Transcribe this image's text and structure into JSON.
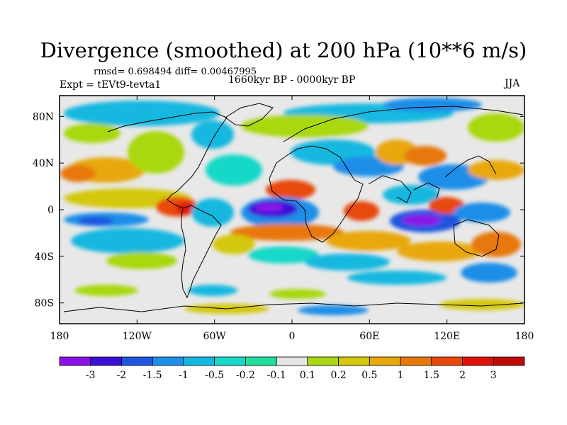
{
  "title": "Divergence (smoothed) at 200 hPa (10**6 m/s)",
  "stats": "rmsd= 0.698494 diff= 0.00467995",
  "experiment": "Expt = tEVt9-tevta1",
  "period": "1660kyr BP - 0000kyr BP",
  "season": "JJA",
  "map": {
    "x_ticks": [
      {
        "lon": -180,
        "label": "180"
      },
      {
        "lon": -120,
        "label": "120W"
      },
      {
        "lon": -60,
        "label": "60W"
      },
      {
        "lon": 0,
        "label": "0"
      },
      {
        "lon": 60,
        "label": "60E"
      },
      {
        "lon": 120,
        "label": "120E"
      },
      {
        "lon": 180,
        "label": "180"
      }
    ],
    "y_ticks": [
      {
        "lat": 80,
        "label": "80N"
      },
      {
        "lat": 40,
        "label": "40N"
      },
      {
        "lat": 0,
        "label": "0"
      },
      {
        "lat": -40,
        "label": "40S"
      },
      {
        "lat": -80,
        "label": "80S"
      }
    ]
  },
  "colorbar": {
    "labels": [
      "-3",
      "-2",
      "-1.5",
      "-1",
      "-0.5",
      "-0.2",
      "-0.1",
      "0.1",
      "0.2",
      "0.5",
      "1",
      "1.5",
      "2",
      "3"
    ],
    "colors": [
      "#8a13e8",
      "#3d10d8",
      "#1f55e0",
      "#1f8ee8",
      "#12b8e0",
      "#18d8c8",
      "#1fe09a",
      "#e6e6e6",
      "#a8d810",
      "#d4c808",
      "#e8a808",
      "#e87808",
      "#e84808",
      "#e01208",
      "#c00808"
    ]
  }
}
